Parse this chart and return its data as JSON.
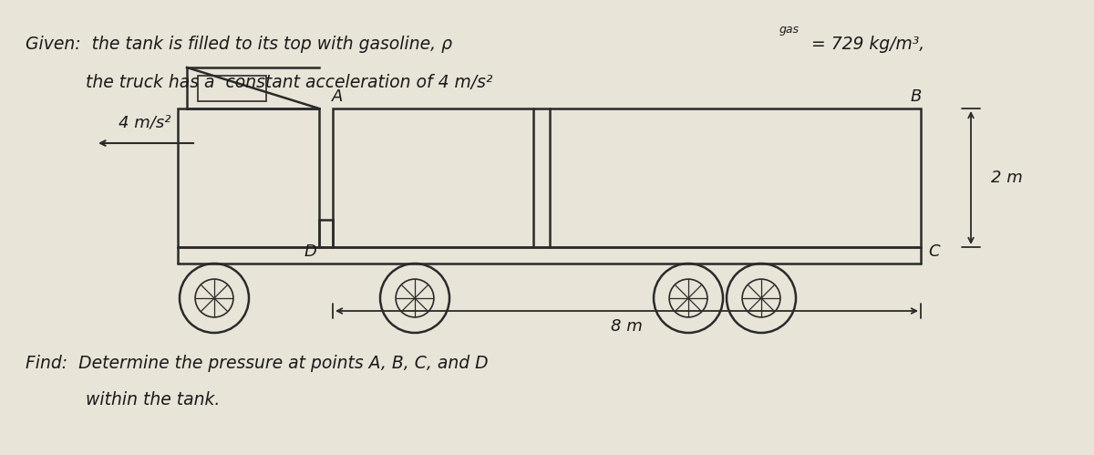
{
  "bg_color": "#e8e4d8",
  "line_color": "#2a2a2a",
  "text_color": "#1a1a1a",
  "title_line1": "Given:  the tank is filled to its top with gasoline, ρ",
  "title_rho_sub": "gas",
  "title_rho_val": "= 729 kg/m³,",
  "title_line2": "           the truck has a  constant acceleration of 4 m/s²",
  "find_line1": "Find:  Determine the pressure at points A, B, C, and D",
  "find_line2": "           within the tank.",
  "acceleration_label": "4 m/s²",
  "length_label": "8 m",
  "height_label": "2 m",
  "point_A": "A",
  "point_B": "B",
  "point_C": "C",
  "point_D": "D"
}
